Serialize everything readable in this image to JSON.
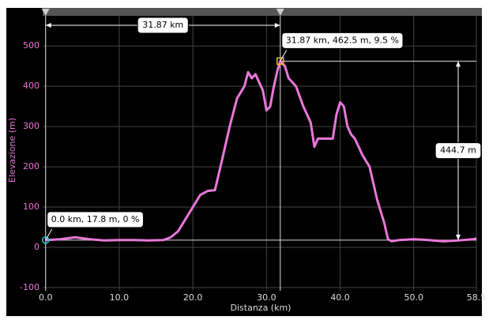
{
  "chart_data": {
    "type": "line",
    "x_label": "Distanza (km)",
    "y_label": "Elevazione (m)",
    "x": [
      0,
      2,
      4,
      6,
      8,
      10,
      12,
      14,
      16,
      17,
      18,
      19,
      20,
      21,
      22,
      23,
      24,
      25,
      26,
      27,
      27.5,
      28,
      28.5,
      29,
      29.5,
      30,
      30.5,
      31,
      31.5,
      31.87,
      32.5,
      33,
      34,
      35,
      36,
      36.5,
      37,
      38,
      39,
      39.5,
      40,
      40.5,
      41,
      41.5,
      42,
      43,
      44,
      45,
      46,
      46.5,
      47,
      48,
      50,
      52,
      54,
      56,
      58,
      58.5
    ],
    "values": [
      17.8,
      20,
      25,
      20,
      17,
      18,
      18,
      17,
      18,
      25,
      40,
      70,
      100,
      130,
      140,
      142,
      220,
      300,
      370,
      400,
      435,
      420,
      430,
      410,
      390,
      340,
      350,
      400,
      440,
      462.5,
      450,
      420,
      400,
      350,
      310,
      250,
      270,
      270,
      270,
      330,
      360,
      350,
      300,
      280,
      270,
      230,
      200,
      120,
      60,
      20,
      15,
      18,
      20,
      18,
      15,
      17,
      20,
      22
    ],
    "color": "#e878d8",
    "xlim": [
      -0.4,
      58.5
    ],
    "ylim": [
      -108,
      575
    ],
    "xticks": [
      {
        "value": 0,
        "label": "0.0"
      },
      {
        "value": 10,
        "label": "10.0"
      },
      {
        "value": 20,
        "label": "20.0"
      },
      {
        "value": 30,
        "label": "30.0"
      },
      {
        "value": 40,
        "label": "40.0"
      },
      {
        "value": 50,
        "label": "50.0"
      },
      58.5
    ],
    "yticks": [
      -100,
      0,
      100,
      200,
      300,
      400,
      500
    ],
    "grid": true,
    "markers": [
      {
        "x": 0,
        "y": 17.8,
        "label": "0.0 km, 17.8 m, 0 %",
        "color": "#22c8d8"
      },
      {
        "x": 31.87,
        "y": 462.5,
        "label": "31.87 km, 462.5 m, 9.5 %",
        "color": "#e8c020"
      }
    ],
    "distance_label": "31.87 km",
    "height_label": "444.7 m"
  }
}
